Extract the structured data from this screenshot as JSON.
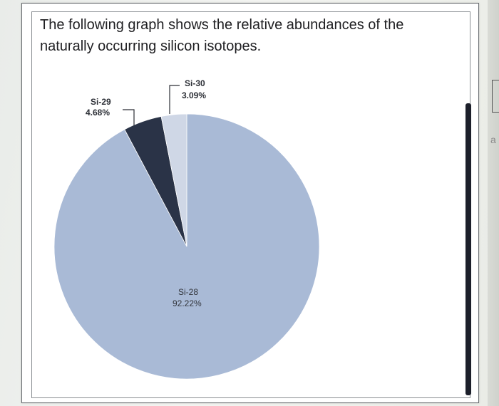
{
  "prompt": {
    "line1": "The following graph shows the relative abundances of the",
    "line2": "naturally occurring silicon isotopes."
  },
  "edge_glyph": "a",
  "chart_data": {
    "type": "pie",
    "title": "",
    "series": [
      {
        "name": "Si-28",
        "percent_label": "92.22%",
        "value": 92.22,
        "color": "#a9bad6"
      },
      {
        "name": "Si-29",
        "percent_label": "4.68%",
        "value": 4.68,
        "color": "#2a3347"
      },
      {
        "name": "Si-30",
        "percent_label": "3.09%",
        "value": 3.09,
        "color": "#cfd7e6"
      }
    ],
    "labels_printed": [
      {
        "text": "Si-29",
        "value_text": "4.68%"
      },
      {
        "text": "Si-30",
        "value_text": "3.09%"
      },
      {
        "text": "Si-28",
        "value_text": "92.22%"
      }
    ]
  }
}
